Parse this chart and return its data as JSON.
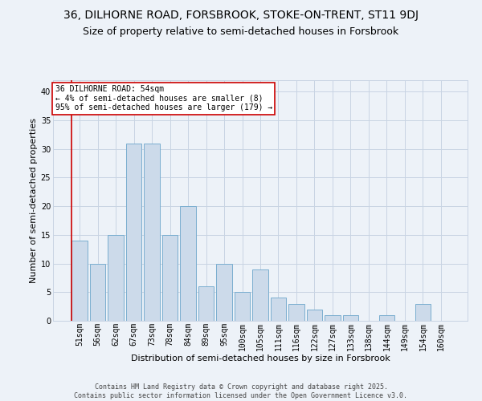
{
  "title_line1": "36, DILHORNE ROAD, FORSBROOK, STOKE-ON-TRENT, ST11 9DJ",
  "title_line2": "Size of property relative to semi-detached houses in Forsbrook",
  "xlabel": "Distribution of semi-detached houses by size in Forsbrook",
  "ylabel": "Number of semi-detached properties",
  "categories": [
    "51sqm",
    "56sqm",
    "62sqm",
    "67sqm",
    "73sqm",
    "78sqm",
    "84sqm",
    "89sqm",
    "95sqm",
    "100sqm",
    "105sqm",
    "111sqm",
    "116sqm",
    "122sqm",
    "127sqm",
    "133sqm",
    "138sqm",
    "144sqm",
    "149sqm",
    "154sqm",
    "160sqm"
  ],
  "values": [
    14,
    10,
    15,
    31,
    31,
    15,
    20,
    6,
    10,
    5,
    9,
    4,
    3,
    2,
    1,
    1,
    0,
    1,
    0,
    3,
    0
  ],
  "bar_color": "#ccdaea",
  "bar_edge_color": "#7aaed0",
  "annotation_text": "36 DILHORNE ROAD: 54sqm\n← 4% of semi-detached houses are smaller (8)\n95% of semi-detached houses are larger (179) →",
  "annotation_box_facecolor": "#ffffff",
  "annotation_box_edgecolor": "#cc0000",
  "ylim": [
    0,
    42
  ],
  "yticks": [
    0,
    5,
    10,
    15,
    20,
    25,
    30,
    35,
    40
  ],
  "grid_color": "#c8d4e3",
  "background_color": "#edf2f8",
  "footer_text": "Contains HM Land Registry data © Crown copyright and database right 2025.\nContains public sector information licensed under the Open Government Licence v3.0.",
  "title_fontsize": 10,
  "subtitle_fontsize": 9,
  "axis_label_fontsize": 8,
  "tick_fontsize": 7,
  "annotation_fontsize": 7,
  "footer_fontsize": 6
}
